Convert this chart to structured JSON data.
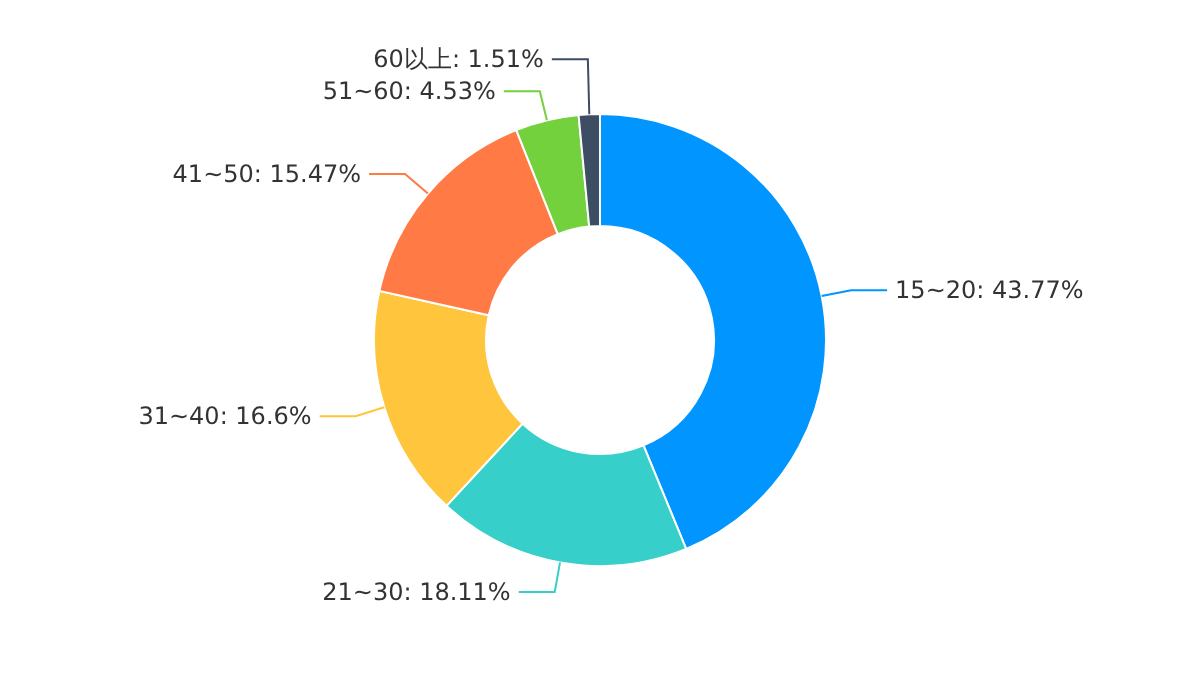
{
  "chart_data": {
    "type": "donut",
    "categories": [
      "15~20",
      "21~30",
      "31~40",
      "41~50",
      "51~60",
      "60以上"
    ],
    "values": [
      43.77,
      18.11,
      16.6,
      15.47,
      4.53,
      1.51
    ],
    "value_labels": [
      "43.77%",
      "18.11%",
      "16.6%",
      "15.47%",
      "4.53%",
      "1.51%"
    ],
    "colors": [
      "#0095ff",
      "#36cfc9",
      "#ffc53d",
      "#ff7a45",
      "#73d13d",
      "#3d4d63"
    ],
    "legend": false
  }
}
